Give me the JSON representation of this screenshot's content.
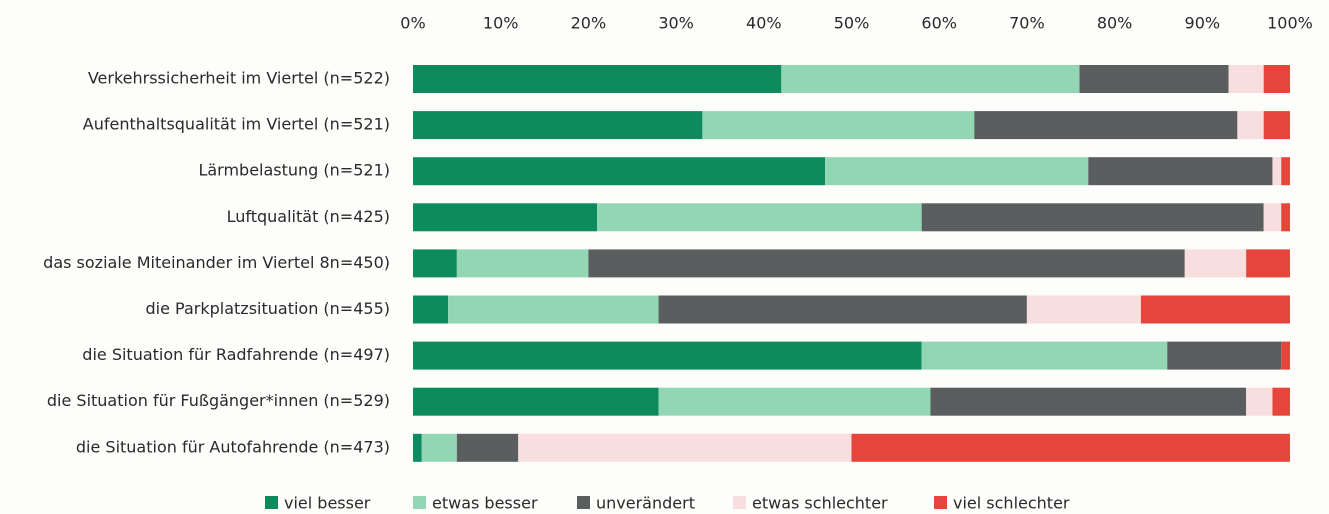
{
  "chart_data": {
    "type": "stacked-bar-horizontal",
    "categories": [
      "Verkehrssicherheit im Viertel (n=522)",
      "Aufenthaltsqualität im Viertel (n=521)",
      "Lärmbelastung (n=521)",
      "Luftqualität (n=425)",
      "das soziale Miteinander im Viertel 8n=450)",
      "die Parkplatzsituation (n=455)",
      "die Situation für Radfahrende (n=497)",
      "die Situation für Fußgänger*innen (n=529)",
      "die Situation für Autofahrende (n=473)"
    ],
    "series": [
      {
        "name": "viel besser",
        "color": "#0e8a5f",
        "values": [
          42,
          33,
          47,
          21,
          5,
          4,
          58,
          28,
          1
        ]
      },
      {
        "name": "etwas besser",
        "color": "#93d6b4",
        "values": [
          34,
          31,
          30,
          37,
          15,
          24,
          28,
          31,
          4
        ]
      },
      {
        "name": "unverändert",
        "color": "#5a5e5f",
        "values": [
          17,
          30,
          21,
          39,
          68,
          42,
          13,
          36,
          7
        ]
      },
      {
        "name": "etwas schlechter",
        "color": "#f8dede",
        "values": [
          4,
          3,
          1,
          2,
          7,
          13,
          0,
          3,
          38
        ]
      },
      {
        "name": "viel schlechter",
        "color": "#e5453a",
        "values": [
          3,
          3,
          1,
          1,
          5,
          17,
          1,
          2,
          50
        ]
      }
    ],
    "xlim": [
      0,
      100
    ],
    "xticks": [
      {
        "value": 0,
        "label": "0%"
      },
      {
        "value": 10,
        "label": "10%"
      },
      {
        "value": 20,
        "label": "20%"
      },
      {
        "value": 30,
        "label": "30%"
      },
      {
        "value": 40,
        "label": "40%"
      },
      {
        "value": 50,
        "label": "50%"
      },
      {
        "value": 60,
        "label": "60%"
      },
      {
        "value": 70,
        "label": "70%"
      },
      {
        "value": 80,
        "label": "80%"
      },
      {
        "value": 90,
        "label": "90%"
      },
      {
        "value": 100,
        "label": "100%"
      }
    ],
    "legend": "bottom"
  }
}
